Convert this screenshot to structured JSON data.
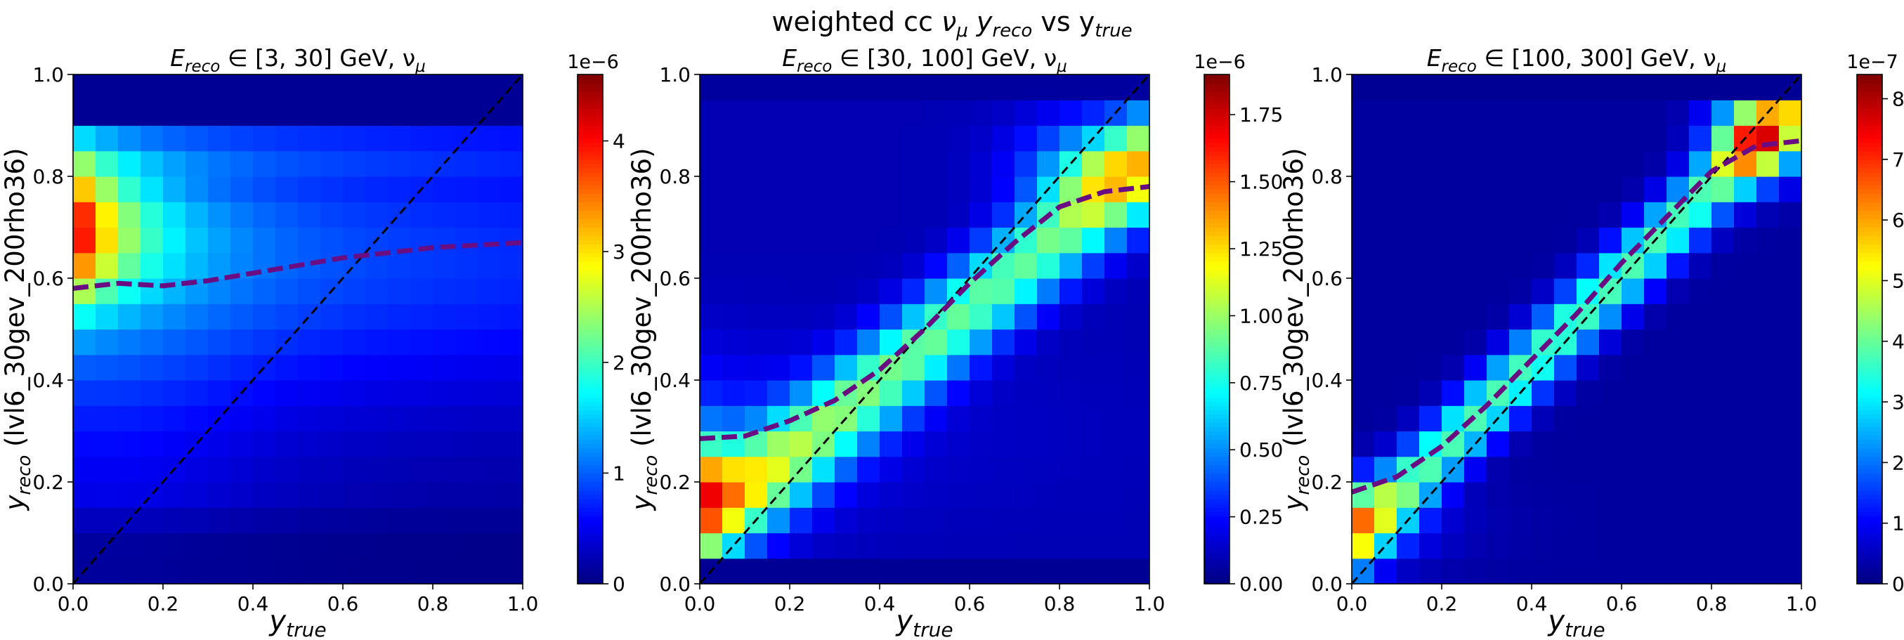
{
  "figure": {
    "suptitle": {
      "prefix": "weighted cc ",
      "nu": "ν",
      "mu": "μ",
      "y1": " y",
      "reco": "reco",
      "vs": " vs  y",
      "true": "true"
    }
  },
  "colormap": "jet",
  "chart_data": [
    {
      "type": "heatmap",
      "title": {
        "prefix": "E",
        "sub": "reco",
        "range": " ∈ [3, 30] GeV, ν",
        "nusub": "μ"
      },
      "xlabel": {
        "main": "y",
        "sub": "true"
      },
      "ylabel": {
        "main": "y",
        "sub": "reco",
        "rest": " (lvl6_30gev_200rho36)"
      },
      "xlim": [
        0,
        1
      ],
      "ylim": [
        0,
        1
      ],
      "xticks": [
        "0.0",
        "0.2",
        "0.4",
        "0.6",
        "0.8",
        "1.0"
      ],
      "yticks": [
        "0.0",
        "0.2",
        "0.4",
        "0.6",
        "0.8",
        "1.0"
      ],
      "bins": 20,
      "shape": "lowE",
      "colorbar": {
        "vmin": 0,
        "vmax": 4.6e-06,
        "offset": "1e−6",
        "ticks": [
          0,
          1e-06,
          2e-06,
          3e-06,
          4e-06
        ],
        "ticklabels": [
          "0",
          "1",
          "2",
          "3",
          "4"
        ]
      },
      "diagonal": {
        "x": [
          0,
          1
        ],
        "y": [
          0,
          1
        ],
        "color": "#000000",
        "style": "dashed"
      },
      "mean_curve": {
        "color": "#6a0d83",
        "x": [
          0,
          0.1,
          0.2,
          0.3,
          0.4,
          0.5,
          0.6,
          0.7,
          0.8,
          0.9,
          1.0
        ],
        "y": [
          0.58,
          0.59,
          0.585,
          0.595,
          0.61,
          0.625,
          0.64,
          0.65,
          0.66,
          0.665,
          0.67
        ]
      }
    },
    {
      "type": "heatmap",
      "title": {
        "prefix": "E",
        "sub": "reco",
        "range": " ∈ [30, 100] GeV, ν",
        "nusub": "μ"
      },
      "xlabel": {
        "main": "y",
        "sub": "true"
      },
      "ylabel": {
        "main": "y",
        "sub": "reco",
        "rest": " (lvl6_30gev_200rho36)"
      },
      "xlim": [
        0,
        1
      ],
      "ylim": [
        0,
        1
      ],
      "xticks": [
        "0.0",
        "0.2",
        "0.4",
        "0.6",
        "0.8",
        "1.0"
      ],
      "yticks": [
        "0.0",
        "0.2",
        "0.4",
        "0.6",
        "0.8",
        "1.0"
      ],
      "bins": 20,
      "shape": "midE",
      "colorbar": {
        "vmin": 0,
        "vmax": 1.9e-06,
        "offset": "1e−6",
        "ticks": [
          0,
          2.5e-07,
          5e-07,
          7.5e-07,
          1e-06,
          1.25e-06,
          1.5e-06,
          1.75e-06
        ],
        "ticklabels": [
          "0.00",
          "0.25",
          "0.50",
          "0.75",
          "1.00",
          "1.25",
          "1.50",
          "1.75"
        ]
      },
      "diagonal": {
        "x": [
          0,
          1
        ],
        "y": [
          0,
          1
        ],
        "color": "#000000",
        "style": "dashed"
      },
      "mean_curve": {
        "color": "#6a0d83",
        "x": [
          0,
          0.1,
          0.2,
          0.3,
          0.4,
          0.5,
          0.6,
          0.7,
          0.8,
          0.9,
          1.0
        ],
        "y": [
          0.285,
          0.29,
          0.32,
          0.36,
          0.42,
          0.5,
          0.59,
          0.67,
          0.74,
          0.77,
          0.78
        ]
      }
    },
    {
      "type": "heatmap",
      "title": {
        "prefix": "E",
        "sub": "reco",
        "range": " ∈ [100, 300] GeV, ν",
        "nusub": "μ"
      },
      "xlabel": {
        "main": "y",
        "sub": "true"
      },
      "ylabel": {
        "main": "y",
        "sub": "reco",
        "rest": " (lvl6_30gev_200rho36)"
      },
      "xlim": [
        0,
        1
      ],
      "ylim": [
        0,
        1
      ],
      "xticks": [
        "0.0",
        "0.2",
        "0.4",
        "0.6",
        "0.8",
        "1.0"
      ],
      "yticks": [
        "0.0",
        "0.2",
        "0.4",
        "0.6",
        "0.8",
        "1.0"
      ],
      "bins": 20,
      "shape": "highE",
      "colorbar": {
        "vmin": 0,
        "vmax": 8.4e-07,
        "offset": "1e−7",
        "ticks": [
          0,
          1e-07,
          2e-07,
          3e-07,
          4e-07,
          5e-07,
          6e-07,
          7e-07,
          8e-07
        ],
        "ticklabels": [
          "0",
          "1",
          "2",
          "3",
          "4",
          "5",
          "6",
          "7",
          "8"
        ]
      },
      "diagonal": {
        "x": [
          0,
          1
        ],
        "y": [
          0,
          1
        ],
        "color": "#000000",
        "style": "dashed"
      },
      "mean_curve": {
        "color": "#6a0d83",
        "x": [
          0,
          0.1,
          0.2,
          0.3,
          0.4,
          0.5,
          0.6,
          0.7,
          0.8,
          0.9,
          1.0
        ],
        "y": [
          0.18,
          0.21,
          0.27,
          0.35,
          0.44,
          0.53,
          0.63,
          0.72,
          0.81,
          0.86,
          0.87
        ]
      }
    }
  ]
}
